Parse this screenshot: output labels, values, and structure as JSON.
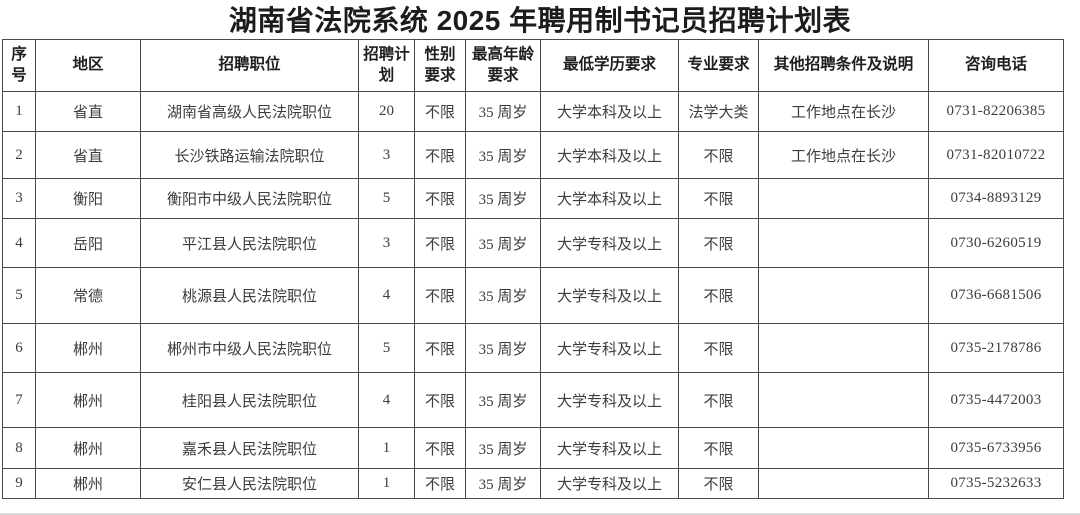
{
  "title": "湖南省法院系统 2025 年聘用制书记员招聘计划表",
  "table": {
    "headers": [
      "序号",
      "地区",
      "招聘职位",
      "招聘计划",
      "性别要求",
      "最高年龄要求",
      "最低学历要求",
      "专业要求",
      "其他招聘条件及说明",
      "咨询电话"
    ],
    "rows": [
      [
        "1",
        "省直",
        "湖南省高级人民法院职位",
        "20",
        "不限",
        "35 周岁",
        "大学本科及以上",
        "法学大类",
        "工作地点在长沙",
        "0731-82206385"
      ],
      [
        "2",
        "省直",
        "长沙铁路运输法院职位",
        "3",
        "不限",
        "35 周岁",
        "大学本科及以上",
        "不限",
        "工作地点在长沙",
        "0731-82010722"
      ],
      [
        "3",
        "衡阳",
        "衡阳市中级人民法院职位",
        "5",
        "不限",
        "35 周岁",
        "大学本科及以上",
        "不限",
        "",
        "0734-8893129"
      ],
      [
        "4",
        "岳阳",
        "平江县人民法院职位",
        "3",
        "不限",
        "35 周岁",
        "大学专科及以上",
        "不限",
        "",
        "0730-6260519"
      ],
      [
        "5",
        "常德",
        "桃源县人民法院职位",
        "4",
        "不限",
        "35 周岁",
        "大学专科及以上",
        "不限",
        "",
        "0736-6681506"
      ],
      [
        "6",
        "郴州",
        "郴州市中级人民法院职位",
        "5",
        "不限",
        "35 周岁",
        "大学专科及以上",
        "不限",
        "",
        "0735-2178786"
      ],
      [
        "7",
        "郴州",
        "桂阳县人民法院职位",
        "4",
        "不限",
        "35 周岁",
        "大学专科及以上",
        "不限",
        "",
        "0735-4472003"
      ],
      [
        "8",
        "郴州",
        "嘉禾县人民法院职位",
        "1",
        "不限",
        "35 周岁",
        "大学专科及以上",
        "不限",
        "",
        "0735-6733956"
      ],
      [
        "9",
        "郴州",
        "安仁县人民法院职位",
        "1",
        "不限",
        "35 周岁",
        "大学专科及以上",
        "不限",
        "",
        "0735-5232633"
      ]
    ]
  }
}
